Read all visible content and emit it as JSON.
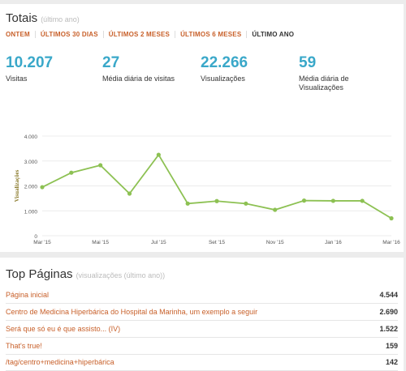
{
  "totals": {
    "title": "Totais",
    "subtitle": "(último ano)",
    "tabs": [
      "ONTEM",
      "ÚLTIMOS 30 DIAS",
      "ÚLTIMOS 2 MESES",
      "ÚLTIMOS 6 MESES",
      "ÚLTIMO ANO"
    ],
    "active_tab": "ÚLTIMO ANO",
    "stats": [
      {
        "value": "10.207",
        "label": "Visitas"
      },
      {
        "value": "27",
        "label": "Média diária de visitas"
      },
      {
        "value": "22.266",
        "label": "Visualizações"
      },
      {
        "value": "59",
        "label": "Média diária de Visualizações"
      }
    ]
  },
  "chart_data": {
    "type": "line",
    "ylabel": "Visualizações",
    "ylim": [
      0,
      4000
    ],
    "yticks": [
      "4.000",
      "3.000",
      "2.000",
      "1.000",
      "0"
    ],
    "x": [
      "Mar '15",
      "Apr '15",
      "May '15",
      "Jun '15",
      "Jul '15",
      "Aug '15",
      "Sep '15",
      "Oct '15",
      "Nov '15",
      "Dec '15",
      "Jan '16",
      "Feb '16",
      "Mar '16"
    ],
    "xtick_labels": [
      "Mar '15",
      "Mai '15",
      "Jul '15",
      "Set '15",
      "Nov '15",
      "Jan '16",
      "Mar '16"
    ],
    "values": [
      1950,
      2530,
      2830,
      1690,
      3250,
      1290,
      1390,
      1290,
      1040,
      1410,
      1400,
      1400,
      700
    ],
    "color": "#8dc153"
  },
  "top_pages": {
    "title": "Top Páginas",
    "subtitle": "(visualizações (último ano))",
    "rows": [
      {
        "page": "Página inicial",
        "views": "4.544"
      },
      {
        "page": "Centro de Medicina Hiperbárica do Hospital da Marinha, um exemplo a seguir",
        "views": "2.690"
      },
      {
        "page": "Será que só eu é que assisto... (IV)",
        "views": "1.522"
      },
      {
        "page": "That's true!",
        "views": "159"
      },
      {
        "page": "/tag/centro+medicina+hiperbárica",
        "views": "142"
      }
    ]
  }
}
